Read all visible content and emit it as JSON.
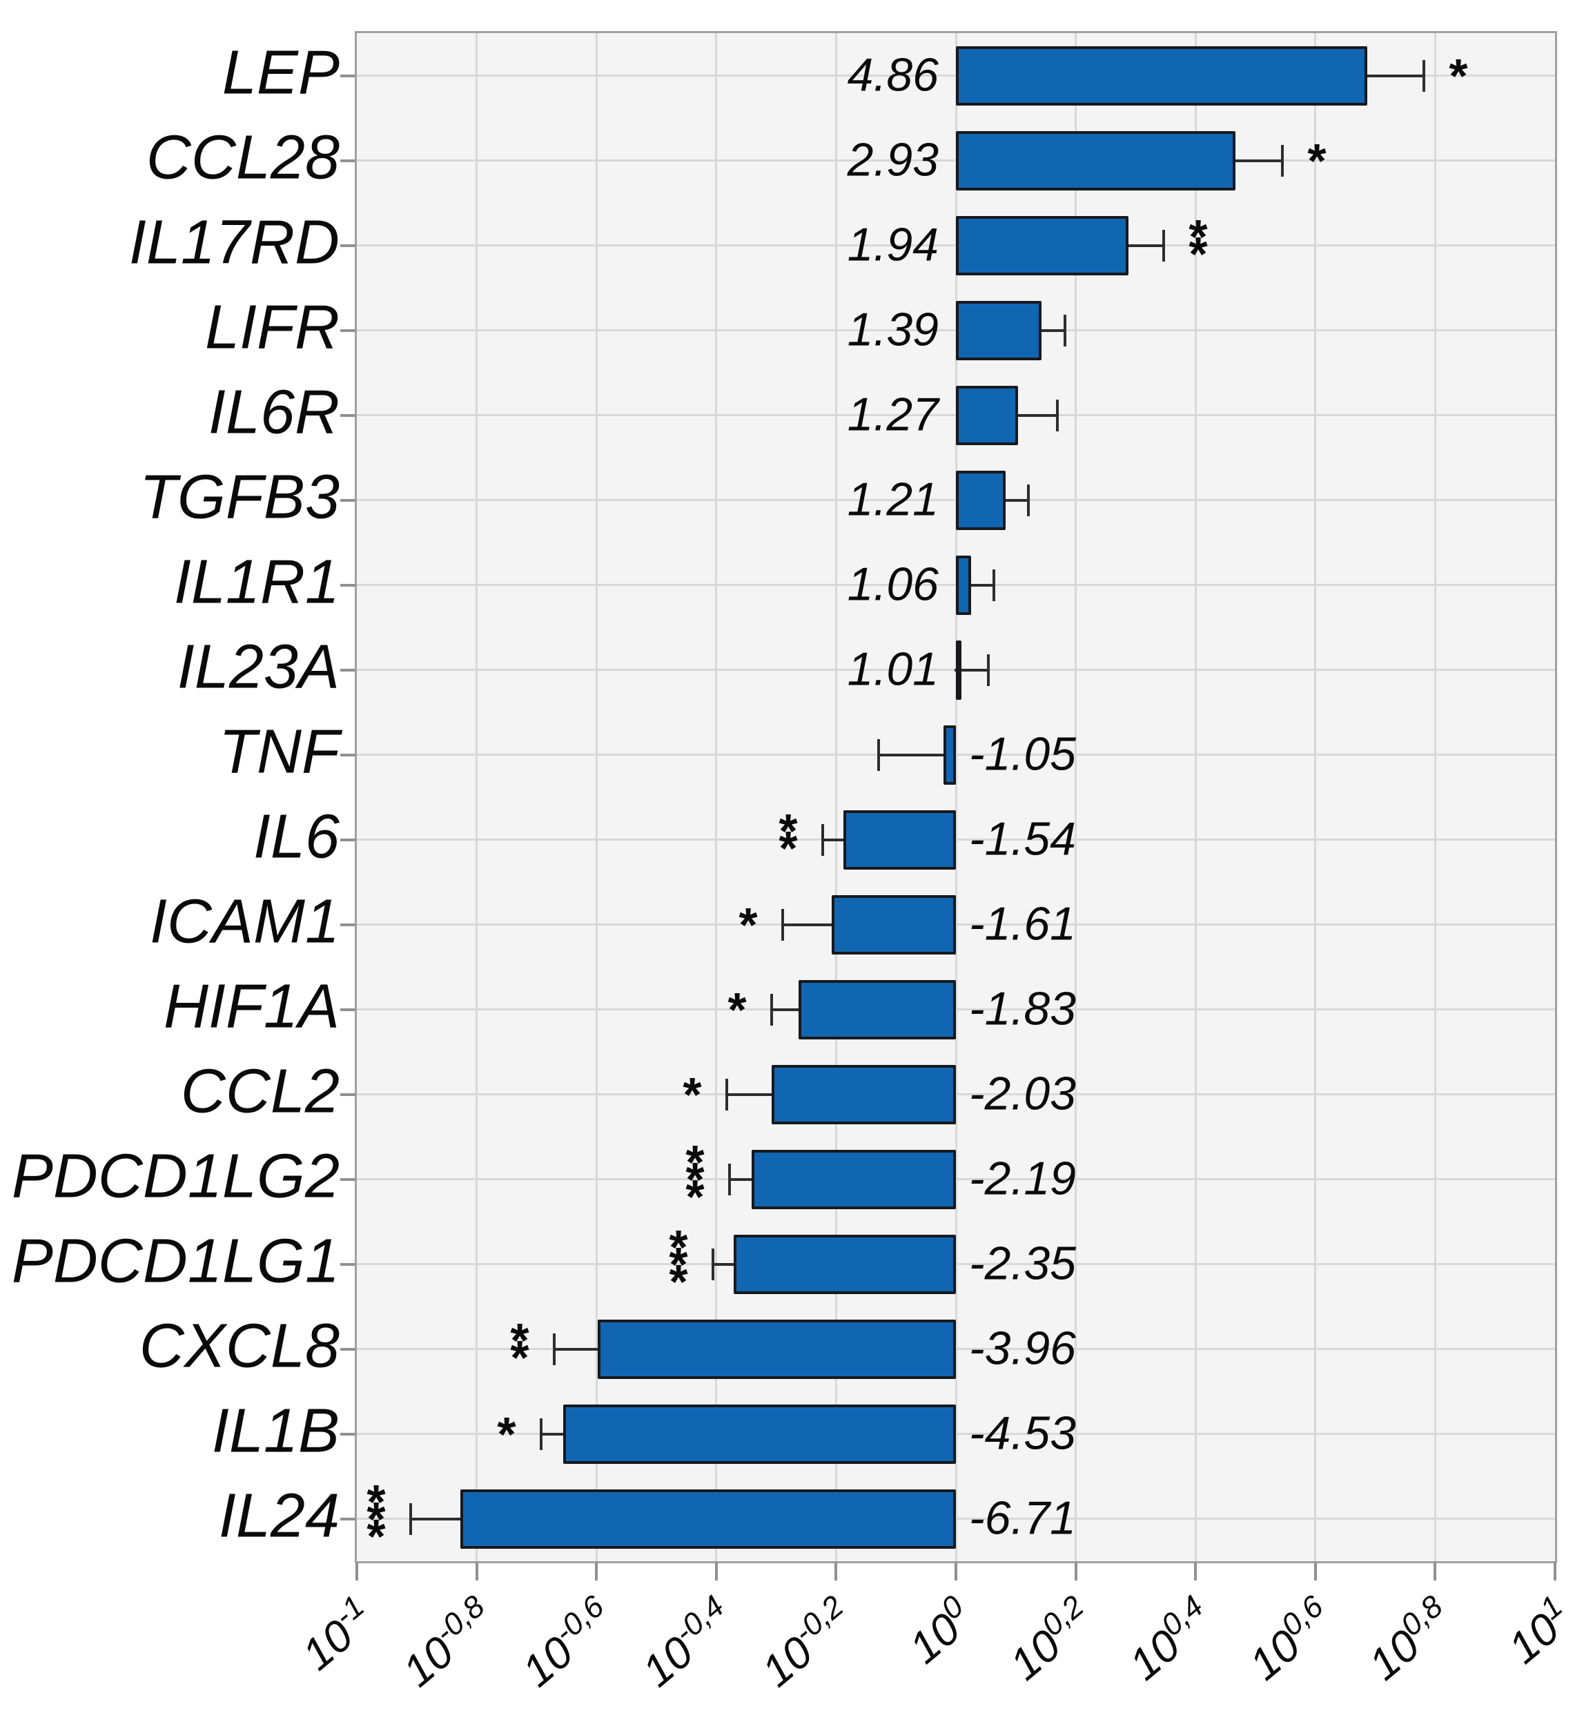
{
  "chart_data": {
    "type": "bar",
    "orientation": "horizontal",
    "x_scale": "log10",
    "xlim": [
      -1,
      1
    ],
    "grid": true,
    "title": "",
    "xlabel": "",
    "ylabel": "",
    "significance_symbol": "*",
    "x_axis": {
      "base": "10",
      "exponents": [
        "-1",
        "-0,8",
        "-0,6",
        "-0,4",
        "-0,2",
        "0",
        "0,2",
        "0,4",
        "0,6",
        "0,8",
        "1"
      ],
      "exponent_values": [
        -1,
        -0.8,
        -0.6,
        -0.4,
        -0.2,
        0,
        0.2,
        0.4,
        0.6,
        0.8,
        1
      ]
    },
    "rows": [
      {
        "gene": "LEP",
        "fold_change": 4.86,
        "label": "4.86",
        "err_log10": 0.094,
        "significance": "*"
      },
      {
        "gene": "CCL28",
        "fold_change": 2.93,
        "label": "2.93",
        "err_log10": 0.078,
        "significance": "*"
      },
      {
        "gene": "IL17RD",
        "fold_change": 1.94,
        "label": "1.94",
        "err_log10": 0.059,
        "significance": "**"
      },
      {
        "gene": "LIFR",
        "fold_change": 1.39,
        "label": "1.39",
        "err_log10": 0.039,
        "significance": ""
      },
      {
        "gene": "IL6R",
        "fold_change": 1.27,
        "label": "1.27",
        "err_log10": 0.065,
        "significance": ""
      },
      {
        "gene": "TGFB3",
        "fold_change": 1.21,
        "label": "1.21",
        "err_log10": 0.038,
        "significance": ""
      },
      {
        "gene": "IL1R1",
        "fold_change": 1.06,
        "label": "1.06",
        "err_log10": 0.038,
        "significance": ""
      },
      {
        "gene": "IL23A",
        "fold_change": 1.01,
        "label": "1.01",
        "err_log10": 0.05,
        "significance": ""
      },
      {
        "gene": "TNF",
        "fold_change": -1.05,
        "label": "-1.05",
        "err_log10": 0.108,
        "significance": ""
      },
      {
        "gene": "IL6",
        "fold_change": -1.54,
        "label": "-1.54",
        "err_log10": 0.035,
        "significance": "**"
      },
      {
        "gene": "ICAM1",
        "fold_change": -1.61,
        "label": "-1.61",
        "err_log10": 0.082,
        "significance": "*"
      },
      {
        "gene": "HIF1A",
        "fold_change": -1.83,
        "label": "-1.83",
        "err_log10": 0.045,
        "significance": "*"
      },
      {
        "gene": "CCL2",
        "fold_change": -2.03,
        "label": "-2.03",
        "err_log10": 0.075,
        "significance": "*"
      },
      {
        "gene": "PDCD1LG2",
        "fold_change": -2.19,
        "label": "-2.19",
        "err_log10": 0.038,
        "significance": "***"
      },
      {
        "gene": "PDCD1LG1",
        "fold_change": -2.35,
        "label": "-2.35",
        "err_log10": 0.035,
        "significance": "***"
      },
      {
        "gene": "CXCL8",
        "fold_change": -3.96,
        "label": "-3.96",
        "err_log10": 0.073,
        "significance": "**"
      },
      {
        "gene": "IL1B",
        "fold_change": -4.53,
        "label": "-4.53",
        "err_log10": 0.036,
        "significance": "*"
      },
      {
        "gene": "IL24",
        "fold_change": -6.71,
        "label": "-6.71",
        "err_log10": 0.083,
        "significance": "***"
      }
    ],
    "colors": {
      "bar_fill": "#1166b2",
      "bar_border": "#17191d",
      "error": "#2d2d2d",
      "grid": "#d8d8d8",
      "plot_bg": "#f4f4f4",
      "frame": "#a0a0a0",
      "tick": "#909090",
      "text": "#0a0a0a",
      "background": "#ffffff"
    }
  }
}
